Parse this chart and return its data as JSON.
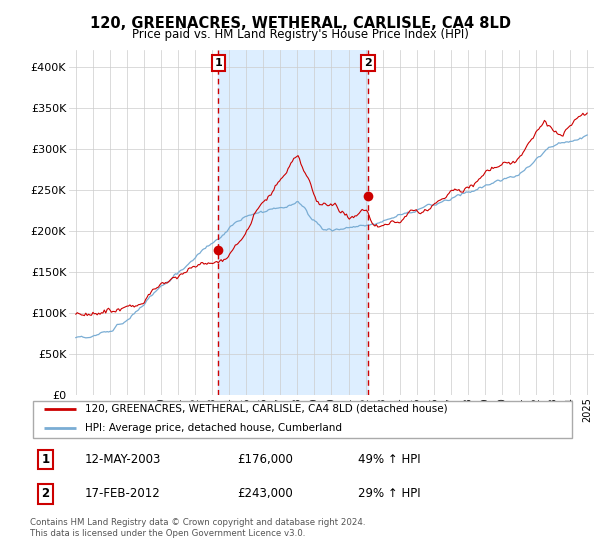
{
  "title": "120, GREENACRES, WETHERAL, CARLISLE, CA4 8LD",
  "subtitle": "Price paid vs. HM Land Registry's House Price Index (HPI)",
  "legend_line1": "120, GREENACRES, WETHERAL, CARLISLE, CA4 8LD (detached house)",
  "legend_line2": "HPI: Average price, detached house, Cumberland",
  "footnote1": "Contains HM Land Registry data © Crown copyright and database right 2024.",
  "footnote2": "This data is licensed under the Open Government Licence v3.0.",
  "sale1_date": "12-MAY-2003",
  "sale1_price": "£176,000",
  "sale1_hpi": "49% ↑ HPI",
  "sale2_date": "17-FEB-2012",
  "sale2_price": "£243,000",
  "sale2_hpi": "29% ↑ HPI",
  "sale1_year": 2003.37,
  "sale1_value": 176000,
  "sale2_year": 2012.12,
  "sale2_value": 243000,
  "red_color": "#cc0000",
  "blue_color": "#7aadd4",
  "shade_color": "#ddeeff",
  "grid_color": "#cccccc",
  "ylim": [
    0,
    420000
  ],
  "yticks": [
    0,
    50000,
    100000,
    150000,
    200000,
    250000,
    300000,
    350000,
    400000
  ],
  "ytick_labels": [
    "£0",
    "£50K",
    "£100K",
    "£150K",
    "£200K",
    "£250K",
    "£300K",
    "£350K",
    "£400K"
  ],
  "xlim_left": 1994.6,
  "xlim_right": 2025.4
}
